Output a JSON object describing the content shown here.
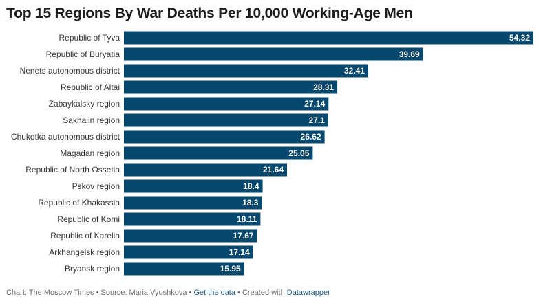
{
  "chart_data": {
    "type": "bar",
    "orientation": "horizontal",
    "title": "Top 15 Regions By War Deaths Per 10,000 Working-Age Men",
    "categories": [
      "Republic of Tyva",
      "Republic of Buryatia",
      "Nenets autonomous district",
      "Republic of Altai",
      "Zabaykalsky region",
      "Sakhalin region",
      "Chukotka autonomous district",
      "Magadan region",
      "Republic of North Ossetia",
      "Pskov region",
      "Republic of Khakassia",
      "Republic of Komi",
      "Republic of Karelia",
      "Arkhangelsk region",
      "Bryansk region"
    ],
    "values": [
      54.32,
      39.69,
      32.41,
      28.31,
      27.14,
      27.1,
      26.62,
      25.05,
      21.64,
      18.4,
      18.3,
      18.11,
      17.67,
      17.14,
      15.95
    ],
    "value_labels": [
      "54.32",
      "39.69",
      "32.41",
      "28.31",
      "27.14",
      "27.1",
      "26.62",
      "25.05",
      "21.64",
      "18.4",
      "18.3",
      "18.11",
      "17.67",
      "17.14",
      "15.95"
    ],
    "xlim": [
      0,
      54.32
    ],
    "bar_color": "#07496e",
    "label_color": "#ffffff",
    "grid": false
  },
  "footer": {
    "chart_credit": "Chart: The Moscow Times",
    "sep1": " • ",
    "source": "Source: Maria Vyushkova",
    "sep2": " • ",
    "get_data": "Get the data",
    "sep3": " • Created with ",
    "datawrapper": "Datawrapper"
  }
}
